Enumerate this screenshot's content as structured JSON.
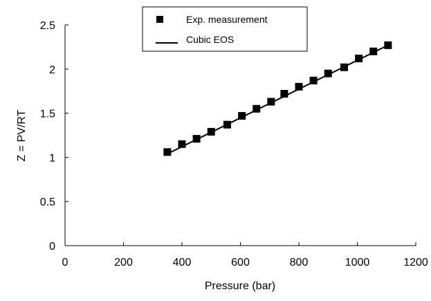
{
  "chart_data": {
    "type": "scatter",
    "xlabel": "Pressure (bar)",
    "ylabel": "Z = PV/RT",
    "xlim": [
      0,
      1200
    ],
    "ylim": [
      0,
      2.5
    ],
    "x_ticks": [
      "0",
      "200",
      "400",
      "600",
      "800",
      "1000",
      "1200"
    ],
    "y_ticks": [
      "0",
      "0.5",
      "1",
      "1.5",
      "2",
      "2.5"
    ],
    "grid": false,
    "legend_position": "top-center",
    "series": [
      {
        "name": "Exp. measurement",
        "kind": "markers",
        "marker": "square",
        "color": "#000000",
        "points": [
          {
            "x": 350,
            "y": 1.06
          },
          {
            "x": 400,
            "y": 1.15
          },
          {
            "x": 450,
            "y": 1.21
          },
          {
            "x": 500,
            "y": 1.29
          },
          {
            "x": 555,
            "y": 1.37
          },
          {
            "x": 605,
            "y": 1.47
          },
          {
            "x": 655,
            "y": 1.55
          },
          {
            "x": 705,
            "y": 1.63
          },
          {
            "x": 750,
            "y": 1.72
          },
          {
            "x": 800,
            "y": 1.8
          },
          {
            "x": 850,
            "y": 1.87
          },
          {
            "x": 900,
            "y": 1.95
          },
          {
            "x": 955,
            "y": 2.02
          },
          {
            "x": 1005,
            "y": 2.12
          },
          {
            "x": 1055,
            "y": 2.2
          },
          {
            "x": 1105,
            "y": 2.27
          }
        ]
      },
      {
        "name": "Cubic EOS",
        "kind": "line",
        "color": "#000000",
        "points": [
          {
            "x": 350,
            "y": 1.04
          },
          {
            "x": 1105,
            "y": 2.27
          }
        ]
      }
    ]
  }
}
